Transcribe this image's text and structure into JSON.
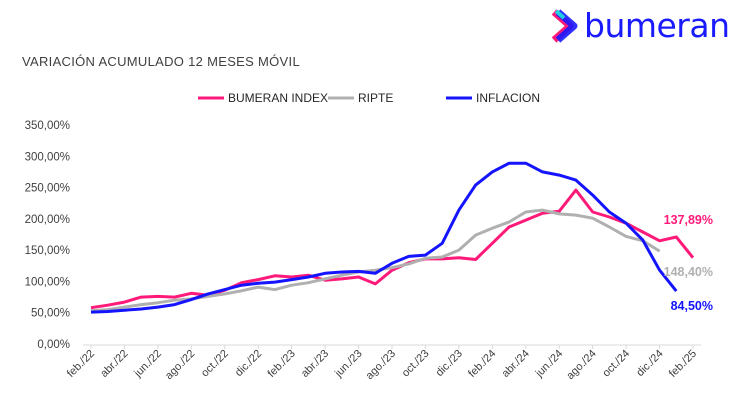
{
  "brand": {
    "name": "bumeran"
  },
  "chart_data": {
    "type": "line",
    "title": "VARIACIÓN ACUMULADO 12 MESES MÓVIL",
    "xlabel": "",
    "ylabel": "",
    "ylim": [
      0,
      350
    ],
    "yticks": [
      "0,00%",
      "50,00%",
      "100,00%",
      "150,00%",
      "200,00%",
      "250,00%",
      "300,00%",
      "350,00%"
    ],
    "ytick_values": [
      0,
      50,
      100,
      150,
      200,
      250,
      300,
      350
    ],
    "x": [
      "feb./22",
      "mar./22",
      "abr./22",
      "may./22",
      "jun./22",
      "jul./22",
      "ago./22",
      "sep./22",
      "oct./22",
      "nov./22",
      "dic./22",
      "ene./23",
      "feb./23",
      "mar./23",
      "abr./23",
      "may./23",
      "jun./23",
      "jul./23",
      "ago./23",
      "sep./23",
      "oct./23",
      "nov./23",
      "dic./23",
      "ene./24",
      "feb./24",
      "mar./24",
      "abr./24",
      "may./24",
      "jun./24",
      "jul./24",
      "ago./24",
      "sep./24",
      "oct./24",
      "nov./24",
      "dic./24",
      "ene./25",
      "feb./25"
    ],
    "xtick_labels": [
      "feb./22",
      "abr./22",
      "jun./22",
      "ago./22",
      "oct./22",
      "dic./22",
      "feb./23",
      "abr./23",
      "jun./23",
      "ago./23",
      "oct./23",
      "dic./23",
      "feb./24",
      "abr./24",
      "jun./24",
      "ago./24",
      "oct./24",
      "dic./24",
      "feb./25"
    ],
    "legend_position": "top-center",
    "grid": false,
    "series": [
      {
        "name": "BUMERAN INDEX",
        "color": "#ff1a7a",
        "end_label": "137,89%",
        "values": [
          58,
          62,
          67,
          75,
          76,
          75,
          81,
          78,
          86,
          98,
          103,
          109,
          107,
          110,
          102,
          104,
          107,
          96,
          118,
          130,
          136,
          136,
          138,
          135,
          161,
          187,
          198,
          209,
          212,
          246,
          211,
          203,
          193,
          179,
          165,
          171,
          137.89
        ]
      },
      {
        "name": "RIPTE",
        "color": "#b0b0b0",
        "end_label": "148,40%",
        "values": [
          53,
          55,
          59,
          63,
          66,
          70,
          72,
          76,
          80,
          85,
          91,
          87,
          94,
          98,
          104,
          110,
          115,
          118,
          122,
          128,
          137,
          139,
          150,
          174,
          185,
          195,
          211,
          214,
          208,
          206,
          201,
          187,
          172,
          165,
          148.4,
          null,
          null
        ]
      },
      {
        "name": "INFLACION",
        "color": "#1414ff",
        "end_label": "84,50%",
        "values": [
          51,
          52,
          54,
          56,
          59,
          63,
          71,
          80,
          87,
          94,
          97,
          99,
          103,
          107,
          113,
          115,
          116,
          113,
          129,
          140,
          142,
          161,
          214,
          254,
          275,
          289,
          289,
          275,
          270,
          262,
          238,
          211,
          193,
          166,
          118,
          84.5,
          null
        ]
      }
    ]
  }
}
